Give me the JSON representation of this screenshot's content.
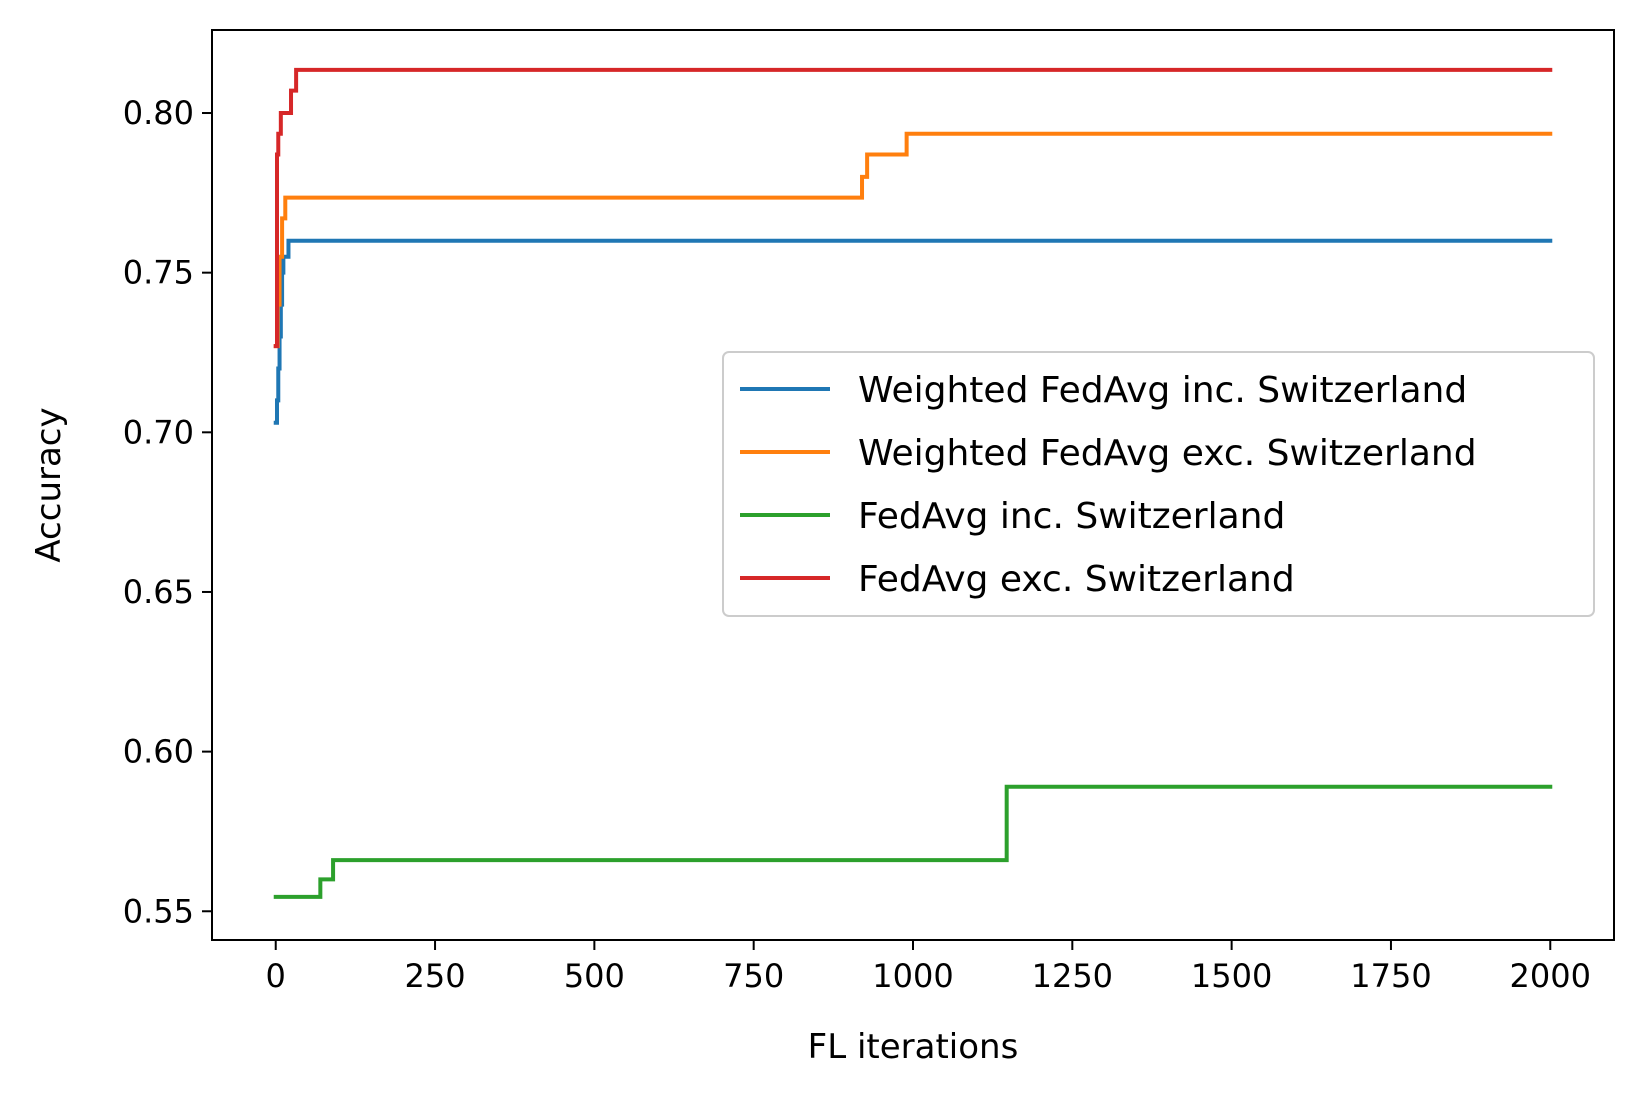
{
  "chart_data": {
    "type": "line",
    "title": "",
    "xlabel": "FL iterations",
    "ylabel": "Accuracy",
    "xlim": [
      -100,
      2100
    ],
    "ylim": [
      0.541,
      0.826
    ],
    "xticks": [
      0,
      250,
      500,
      750,
      1000,
      1250,
      1500,
      1750,
      2000
    ],
    "xtick_labels": [
      "0",
      "250",
      "500",
      "750",
      "1000",
      "1250",
      "1500",
      "1750",
      "2000"
    ],
    "yticks": [
      0.55,
      0.6,
      0.65,
      0.7,
      0.75,
      0.8
    ],
    "ytick_labels": [
      "0.55",
      "0.60",
      "0.65",
      "0.70",
      "0.75",
      "0.80"
    ],
    "grid": false,
    "legend_position": "center-right",
    "series": [
      {
        "name": "Weighted FedAvg inc. Switzerland",
        "color": "#1f77b4",
        "step": true,
        "x": [
          0,
          2,
          4,
          6,
          8,
          10,
          12,
          16,
          20,
          2000
        ],
        "y": [
          0.703,
          0.71,
          0.72,
          0.73,
          0.74,
          0.75,
          0.755,
          0.755,
          0.76,
          0.76
        ]
      },
      {
        "name": "Weighted FedAvg exc. Switzerland",
        "color": "#ff7f0e",
        "step": true,
        "x": [
          0,
          3,
          6,
          10,
          15,
          920,
          928,
          990,
          2000
        ],
        "y": [
          0.727,
          0.74,
          0.755,
          0.767,
          0.7735,
          0.78,
          0.787,
          0.7935,
          0.7935
        ]
      },
      {
        "name": "FedAvg inc. Switzerland",
        "color": "#2ca02c",
        "step": true,
        "x": [
          0,
          70,
          90,
          1147,
          2000
        ],
        "y": [
          0.5545,
          0.56,
          0.566,
          0.589,
          0.589
        ]
      },
      {
        "name": "FedAvg exc. Switzerland",
        "color": "#d62728",
        "step": true,
        "x": [
          0,
          2,
          4,
          8,
          14,
          24,
          32,
          2000
        ],
        "y": [
          0.727,
          0.787,
          0.7935,
          0.8,
          0.8,
          0.807,
          0.8135,
          0.8135
        ]
      }
    ]
  }
}
